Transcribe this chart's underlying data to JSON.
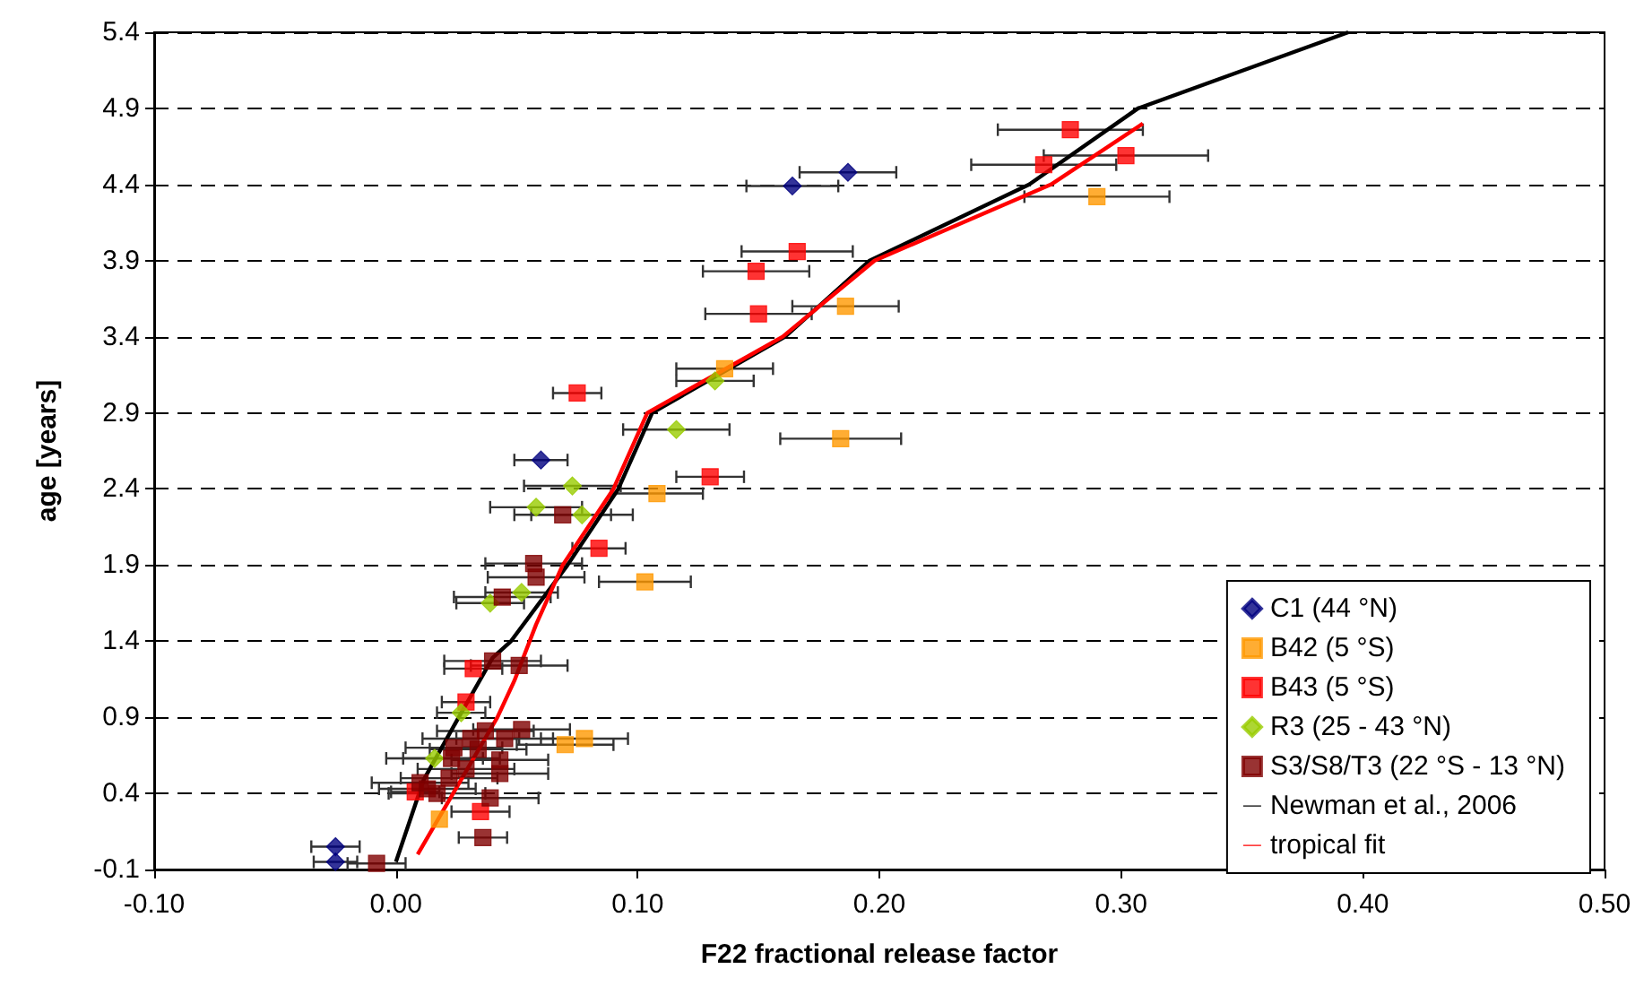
{
  "chart_data": {
    "type": "scatter",
    "xlabel": "F22 fractional release factor",
    "ylabel": "age [years]",
    "xlim": [
      -0.1,
      0.5
    ],
    "xticks": [
      {
        "value": -0.1,
        "label": "-0.10"
      },
      {
        "value": 0,
        "label": "0.00"
      },
      {
        "value": 0.1,
        "label": "0.10"
      },
      {
        "value": 0.2,
        "label": "0.20"
      },
      {
        "value": 0.3,
        "label": "0.30"
      },
      {
        "value": 0.4,
        "label": "0.40"
      },
      {
        "value": 0.5,
        "label": "0.50"
      }
    ],
    "ylim": [
      -0.1,
      5.4
    ],
    "yticks": [
      -0.1,
      0.4,
      0.9,
      1.4,
      1.9,
      2.4,
      2.9,
      3.4,
      3.9,
      4.4,
      4.9,
      5.4
    ],
    "grid": "y",
    "legend": "bottom right",
    "series": [
      {
        "name": "C1 (44 °N)",
        "color": "#000080",
        "marker": "diamond",
        "x": [
          0.187,
          0.164,
          0.06,
          -0.025,
          -0.025
        ],
        "values": [
          4.48,
          4.39,
          2.59,
          0.05,
          -0.05
        ],
        "xerrors": [
          0.02,
          0.019,
          0.011,
          0.01,
          0.009
        ]
      },
      {
        "name": "B42 (5 °S)",
        "color": "#ff9900",
        "marker": "square",
        "x": [
          0.29,
          0.186,
          0.184,
          0.136,
          0.108,
          0.103,
          0.078,
          0.07,
          0.018
        ],
        "values": [
          4.32,
          3.6,
          2.73,
          3.19,
          2.37,
          1.79,
          0.76,
          0.72,
          0.23
        ],
        "xerrors": [
          0.03,
          0.022,
          0.025,
          0.02,
          0.019,
          0.019,
          0.018,
          0.02,
          null
        ]
      },
      {
        "name": "B43 (5 °S)",
        "color": "#ff0000",
        "marker": "square",
        "x": [
          0.279,
          0.302,
          0.268,
          0.166,
          0.149,
          0.15,
          0.13,
          0.075,
          0.084,
          0.032,
          0.029,
          0.035,
          0.008
        ],
        "values": [
          4.76,
          4.59,
          4.53,
          3.96,
          3.83,
          3.55,
          2.48,
          3.03,
          2.01,
          1.22,
          1.0,
          0.28,
          0.41
        ],
        "xerrors": [
          0.03,
          0.034,
          0.03,
          0.023,
          0.022,
          0.022,
          0.014,
          0.01,
          0.011,
          0.012,
          0.01,
          0.012,
          0.01
        ]
      },
      {
        "name": "R3 (25 - 43 °N)",
        "color": "#99cc00",
        "marker": "diamond",
        "x": [
          0.132,
          0.116,
          0.073,
          0.058,
          0.077,
          0.052,
          0.039,
          0.027,
          0.016
        ],
        "values": [
          3.11,
          2.79,
          2.42,
          2.28,
          2.23,
          1.72,
          1.65,
          0.93,
          0.63
        ],
        "xerrors": [
          0.016,
          0.022,
          0.02,
          0.019,
          0.021,
          0.015,
          0.014,
          0.01,
          0.02
        ]
      },
      {
        "name": "S3/S8/T3 (22 °S - 13 °N)",
        "color": "#800000",
        "marker": "square",
        "x": [
          0.069,
          0.057,
          0.058,
          0.044,
          0.04,
          0.051,
          0.037,
          0.052,
          0.045,
          0.031,
          0.034,
          0.024,
          0.023,
          0.043,
          0.043,
          0.029,
          0.022,
          0.01,
          0.013,
          0.017,
          0.039,
          0.036,
          -0.008
        ],
        "values": [
          2.23,
          1.91,
          1.82,
          1.69,
          1.27,
          1.24,
          0.81,
          0.82,
          0.76,
          0.76,
          0.69,
          0.7,
          0.63,
          0.62,
          0.53,
          0.56,
          0.5,
          0.47,
          0.43,
          0.4,
          0.37,
          0.11,
          -0.06
        ],
        "xerrors": [
          0.02,
          0.02,
          0.02,
          0.02,
          0.02,
          0.02,
          0.02,
          0.02,
          0.02,
          0.02,
          0.02,
          0.02,
          0.02,
          0.02,
          0.02,
          0.02,
          0.02,
          0.02,
          0.02,
          0.02,
          0.02,
          0.01,
          0.012
        ]
      },
      {
        "name": "Newman et al., 2006",
        "type": "line",
        "color": "#000000",
        "marker": "none",
        "x": [
          0.0,
          0.0115,
          0.026,
          0.04,
          0.0476,
          0.071,
          0.092,
          0.106,
          0.161,
          0.196,
          0.262,
          0.307,
          0.394
        ],
        "values": [
          -0.05,
          0.49,
          0.9,
          1.29,
          1.4,
          1.9,
          2.4,
          2.9,
          3.4,
          3.9,
          4.4,
          4.9,
          5.4
        ]
      },
      {
        "name": "tropical fit",
        "type": "line",
        "color": "#ff0000",
        "marker": "none",
        "x": [
          0.009,
          0.042,
          0.049,
          0.058,
          0.069,
          0.09,
          0.104,
          0.16,
          0.198,
          0.271,
          0.309
        ],
        "values": [
          0.0,
          0.9,
          1.14,
          1.51,
          1.9,
          2.4,
          2.9,
          3.4,
          3.9,
          4.4,
          4.8
        ]
      }
    ]
  }
}
